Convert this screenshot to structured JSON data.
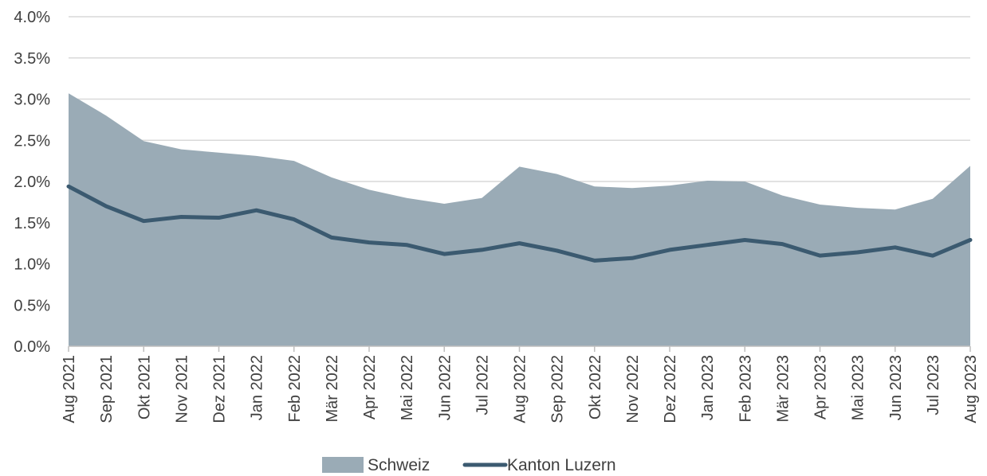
{
  "chart_data": {
    "type": "area",
    "title": "",
    "xlabel": "",
    "ylabel": "",
    "categories": [
      "Aug 2021",
      "Sep 2021",
      "Okt 2021",
      "Nov 2021",
      "Dez 2021",
      "Jan 2022",
      "Feb 2022",
      "Mär 2022",
      "Apr 2022",
      "Mai 2022",
      "Jun 2022",
      "Jul 2022",
      "Aug 2022",
      "Sep 2022",
      "Okt 2022",
      "Nov 2022",
      "Dez 2022",
      "Jan 2023",
      "Feb 2023",
      "Mär 2023",
      "Apr 2023",
      "Mai 2023",
      "Jun 2023",
      "Jul 2023",
      "Aug 2023"
    ],
    "ylim": [
      0,
      4.0
    ],
    "yticks": [
      "0.0%",
      "0.5%",
      "1.0%",
      "1.5%",
      "2.0%",
      "2.5%",
      "3.0%",
      "3.5%",
      "4.0%"
    ],
    "grid": true,
    "legend_position": "bottom",
    "series": [
      {
        "name": "Schweiz",
        "kind": "area",
        "color": "#9aabb6",
        "values": [
          3.07,
          2.8,
          2.49,
          2.39,
          2.35,
          2.31,
          2.25,
          2.05,
          1.9,
          1.8,
          1.73,
          1.8,
          2.18,
          2.09,
          1.94,
          1.92,
          1.95,
          2.01,
          2.0,
          1.83,
          1.72,
          1.68,
          1.66,
          1.79,
          2.19
        ]
      },
      {
        "name": "Kanton Luzern",
        "kind": "line",
        "color": "#3b5a70",
        "values": [
          1.94,
          1.7,
          1.52,
          1.57,
          1.56,
          1.65,
          1.54,
          1.32,
          1.26,
          1.23,
          1.12,
          1.17,
          1.25,
          1.16,
          1.04,
          1.07,
          1.17,
          1.23,
          1.29,
          1.24,
          1.1,
          1.14,
          1.2,
          1.1,
          1.29
        ]
      }
    ]
  }
}
